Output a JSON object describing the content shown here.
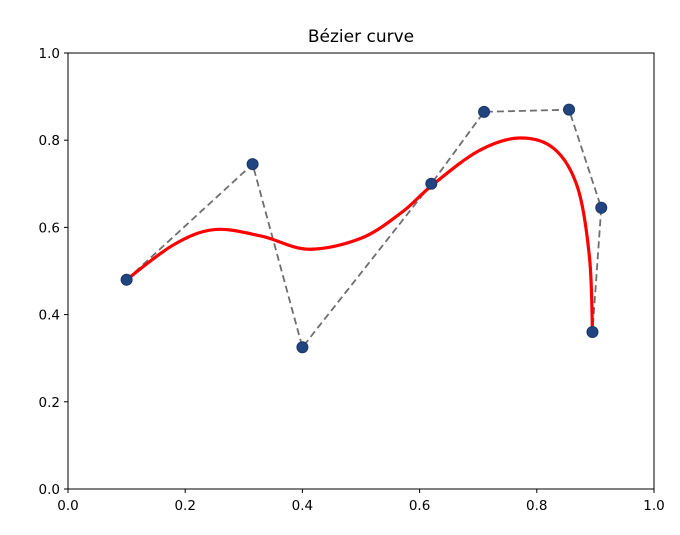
{
  "chart_data": {
    "type": "line",
    "title": "Bézier curve",
    "xlabel": "",
    "ylabel": "",
    "xlim": [
      0.0,
      1.0
    ],
    "ylim": [
      0.0,
      1.0
    ],
    "x_ticks": [
      "0.0",
      "0.2",
      "0.4",
      "0.6",
      "0.8",
      "1.0"
    ],
    "y_ticks": [
      "0.0",
      "0.2",
      "0.4",
      "0.6",
      "0.8",
      "1.0"
    ],
    "grid": false,
    "legend": "none",
    "control_points": {
      "x": [
        0.1,
        0.315,
        0.4,
        0.62,
        0.71,
        0.855,
        0.91,
        0.895
      ],
      "y": [
        0.48,
        0.745,
        0.325,
        0.7,
        0.865,
        0.87,
        0.645,
        0.36
      ]
    },
    "curve": {
      "x": [
        0.1,
        0.18,
        0.25,
        0.33,
        0.41,
        0.5,
        0.57,
        0.62,
        0.7,
        0.77,
        0.83,
        0.87,
        0.89,
        0.895
      ],
      "y": [
        0.48,
        0.56,
        0.595,
        0.58,
        0.55,
        0.575,
        0.635,
        0.695,
        0.775,
        0.805,
        0.78,
        0.69,
        0.53,
        0.36
      ]
    },
    "colors": {
      "curve": "#ff0000",
      "control_polygon": "#6e6e6e",
      "control_points": "#22457f",
      "axes": "#000000"
    }
  }
}
